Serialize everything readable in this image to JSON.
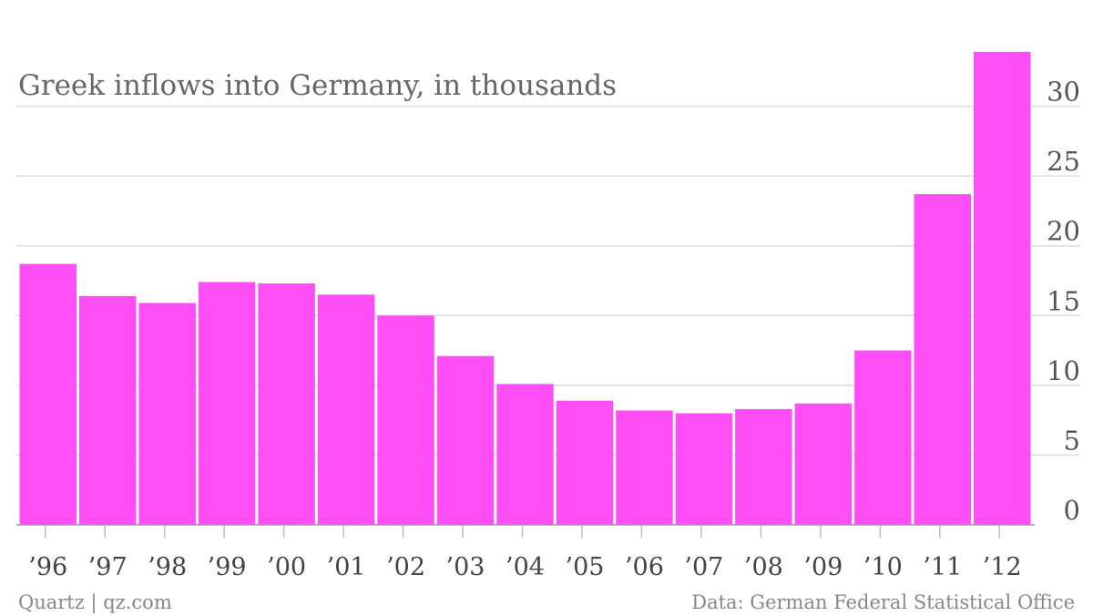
{
  "colors": {
    "bar": "#ff4ef6",
    "grid": "#dcdcdc",
    "text": "#555555"
  },
  "footer": {
    "source_left": "Quartz | qz.com",
    "source_right": "Data: German Federal Statistical Office"
  },
  "chart_data": {
    "type": "bar",
    "title": "Greek inflows into Germany, in thousands",
    "categories": [
      "’96",
      "’97",
      "’98",
      "’99",
      "’00",
      "’01",
      "’02",
      "’03",
      "’04",
      "’05",
      "’06",
      "’07",
      "’08",
      "’09",
      "’10",
      "’11",
      "’12"
    ],
    "values": [
      18.7,
      16.4,
      15.9,
      17.4,
      17.3,
      16.5,
      15.0,
      12.1,
      10.1,
      8.9,
      8.2,
      8.0,
      8.3,
      8.7,
      12.5,
      23.7,
      33.9
    ],
    "yticks": [
      "0",
      "5",
      "10",
      "15",
      "20",
      "25",
      "30"
    ],
    "ylim": [
      0,
      35
    ],
    "grid": true,
    "y_axis_side": "right",
    "xlabel": "",
    "ylabel": ""
  }
}
